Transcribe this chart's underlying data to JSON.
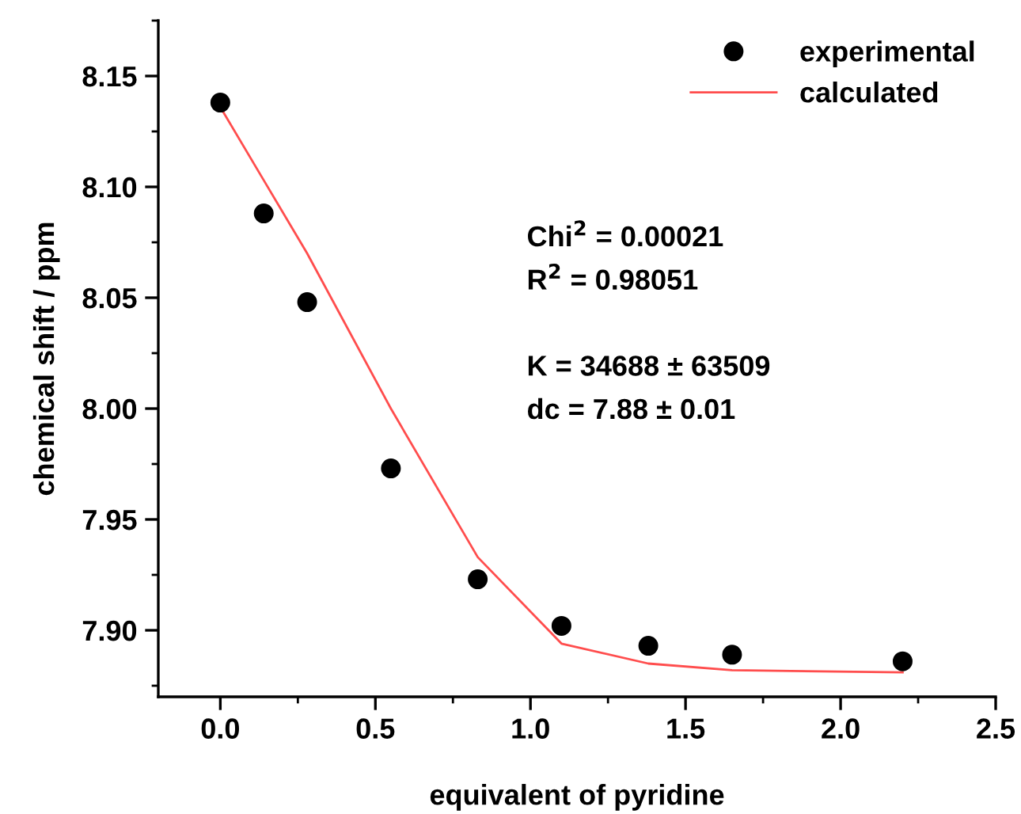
{
  "chart_data": {
    "type": "scatter",
    "xlabel": "equivalent of pyridine",
    "ylabel": "chemical shift / ppm",
    "series": [
      {
        "name": "experimental",
        "color": "#000000",
        "marker": "circle",
        "x": [
          0,
          0.14,
          0.28,
          0.55,
          0.83,
          1.1,
          1.38,
          1.65,
          2.2
        ],
        "values": [
          8.138,
          8.088,
          8.048,
          7.973,
          7.923,
          7.902,
          7.893,
          7.889,
          7.886
        ]
      },
      {
        "name": "calculated",
        "type": "line",
        "color": "#ff4d4d",
        "marker": "none",
        "line_style": "solid",
        "x": [
          0,
          0.14,
          0.28,
          0.55,
          0.83,
          1.1,
          1.38,
          1.65,
          2.2
        ],
        "values": [
          8.136,
          8.103,
          8.07,
          8.0,
          7.933,
          7.894,
          7.885,
          7.882,
          7.881
        ]
      }
    ],
    "annotations": [
      "Chi$^{2}$ = 0.00021",
      "R$^{2}$ = 0.98051",
      "K = 34688 ± 63509",
      "dc = 7.88 ± 0.01"
    ],
    "xlim": [
      -0.2,
      2.5
    ],
    "xticks": [
      {
        "value": 0.0,
        "label": "0.0"
      },
      {
        "value": 0.5,
        "label": "0.5"
      },
      {
        "value": 1.0,
        "label": "1.0"
      },
      {
        "value": 1.5,
        "label": "1.5"
      },
      {
        "value": 2.0,
        "label": "2.0"
      },
      {
        "value": 2.5,
        "label": "2.5"
      }
    ],
    "ylim": [
      7.87,
      8.175
    ],
    "yticks": [
      {
        "value": 7.9,
        "label": "7.90"
      },
      {
        "value": 7.95,
        "label": "7.95"
      },
      {
        "value": 8.0,
        "label": "8.00"
      },
      {
        "value": 8.05,
        "label": "8.05"
      },
      {
        "value": 8.1,
        "label": "8.10"
      },
      {
        "value": 8.15,
        "label": "8.15"
      }
    ],
    "grid": false,
    "legend": "top right"
  }
}
